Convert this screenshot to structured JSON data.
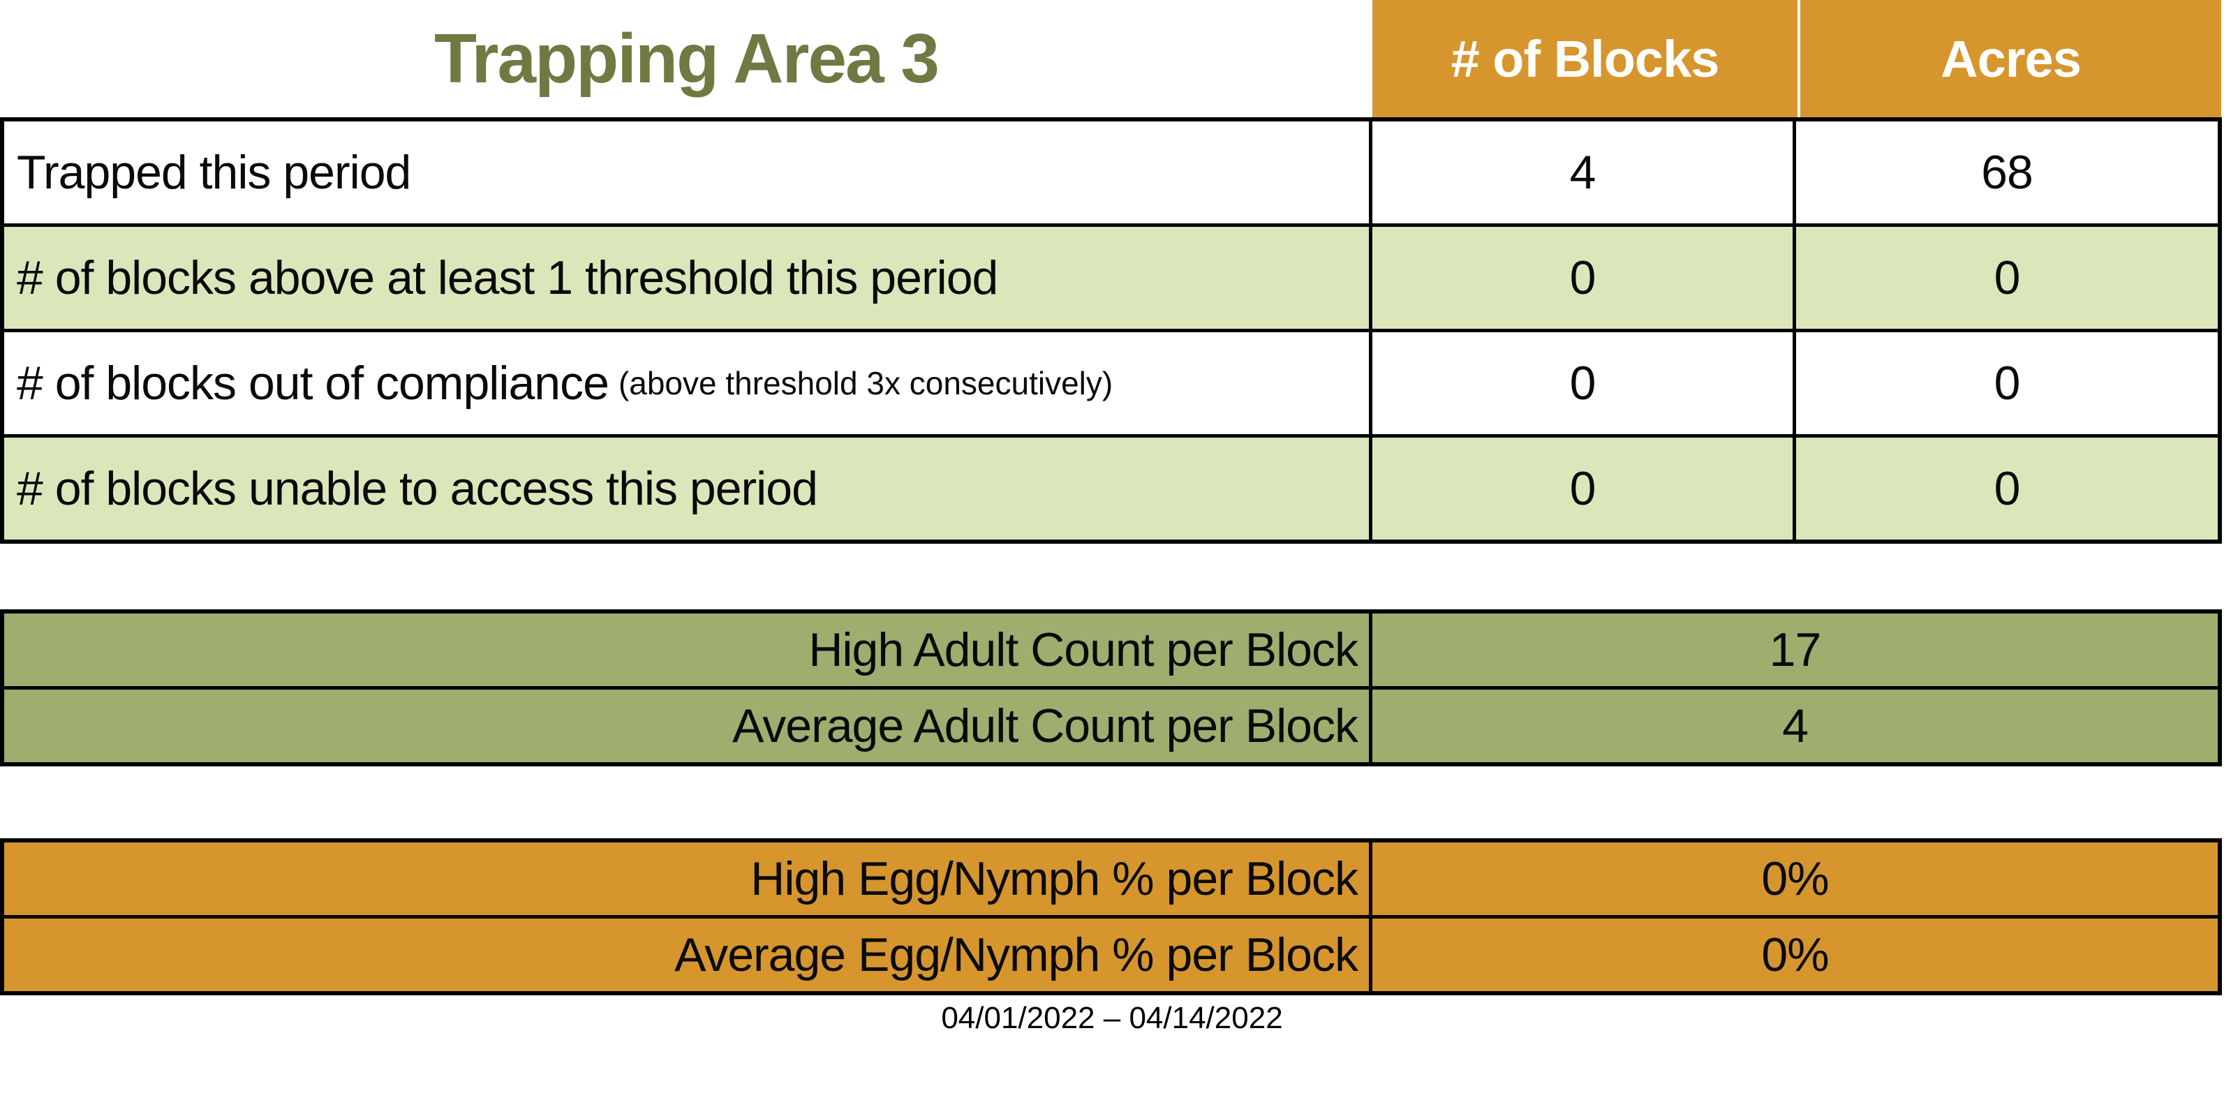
{
  "page": {
    "title": "Trapping Area 3",
    "date_range": "04/01/2022 – 04/14/2022"
  },
  "columns": {
    "blocks": "# of Blocks",
    "acres": "Acres"
  },
  "summary": {
    "rows": [
      {
        "label": "Trapped this period",
        "blocks": "4",
        "acres": "68"
      },
      {
        "label": "# of blocks above at least 1 threshold this period",
        "blocks": "0",
        "acres": "0"
      },
      {
        "label": "# of blocks out of compliance",
        "note": "(above threshold 3x consecutively)",
        "blocks": "0",
        "acres": "0"
      },
      {
        "label": "# of blocks unable to access this period",
        "blocks": "0",
        "acres": "0"
      }
    ]
  },
  "adult_counts": {
    "rows": [
      {
        "label": "High Adult Count per Block",
        "value": "17"
      },
      {
        "label": "Average Adult Count per Block",
        "value": "4"
      }
    ]
  },
  "egg_nymph": {
    "rows": [
      {
        "label": "High Egg/Nymph % per Block",
        "value": "0%"
      },
      {
        "label": "Average Egg/Nymph % per Block",
        "value": "0%"
      }
    ]
  },
  "colors": {
    "title_green": "#6E7A42",
    "header_orange": "#D6962D",
    "row_light_green": "#DBE7BB",
    "olive_green": "#9DAE6F",
    "header_text": "#FFFFFF",
    "border": "#000000"
  }
}
